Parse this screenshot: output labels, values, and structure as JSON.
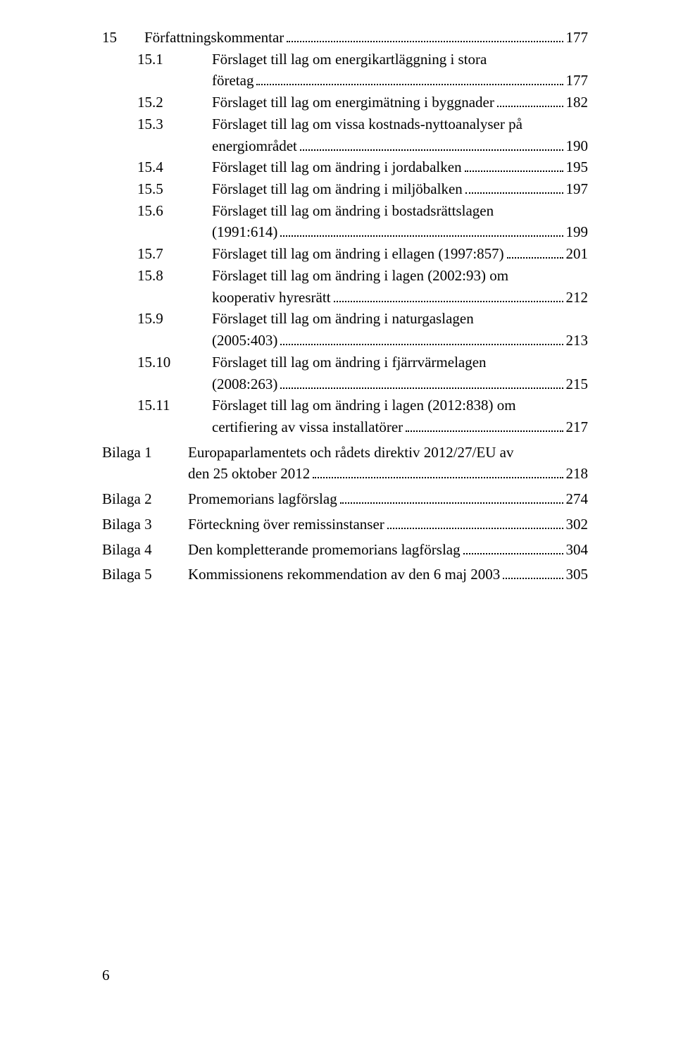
{
  "heading_line": {
    "num": "15",
    "title": "Författningskommentar",
    "page": "177"
  },
  "entries": [
    {
      "num": "15.1",
      "lines": [
        "Förslaget till lag om energikartläggning i stora",
        "företag"
      ],
      "page": "177"
    },
    {
      "num": "15.2",
      "lines": [
        "Förslaget till lag om energimätning i byggnader"
      ],
      "page": "182"
    },
    {
      "num": "15.3",
      "lines": [
        "Förslaget till lag om vissa kostnads-nyttoanalyser på",
        "energiområdet"
      ],
      "page": "190"
    },
    {
      "num": "15.4",
      "lines": [
        "Förslaget till lag om ändring i jordabalken"
      ],
      "page": "195"
    },
    {
      "num": "15.5",
      "lines": [
        "Förslaget till lag om ändring i miljöbalken"
      ],
      "page": "197"
    },
    {
      "num": "15.6",
      "lines": [
        "Förslaget till lag om ändring i bostadsrättslagen",
        "(1991:614)"
      ],
      "page": "199"
    },
    {
      "num": "15.7",
      "lines": [
        "Förslaget till lag om ändring i ellagen (1997:857)"
      ],
      "page": "201"
    },
    {
      "num": "15.8",
      "lines": [
        "Förslaget till lag om ändring i lagen (2002:93) om",
        "kooperativ hyresrätt"
      ],
      "page": "212"
    },
    {
      "num": "15.9",
      "lines": [
        "Förslaget till lag om ändring i naturgaslagen",
        "(2005:403)"
      ],
      "page": "213"
    },
    {
      "num": "15.10",
      "lines": [
        "Förslaget till lag om ändring i fjärrvärmelagen",
        "(2008:263)"
      ],
      "page": "215"
    },
    {
      "num": "15.11",
      "lines": [
        "Förslaget till lag om ändring i lagen (2012:838) om",
        "certifiering av vissa installatörer"
      ],
      "page": "217"
    }
  ],
  "bilaga": [
    {
      "num": "Bilaga 1",
      "lines": [
        "Europaparlamentets och rådets direktiv 2012/27/EU av",
        "den 25 oktober 2012"
      ],
      "page": "218"
    },
    {
      "num": "Bilaga 2",
      "lines": [
        "Promemorians lagförslag"
      ],
      "page": "274"
    },
    {
      "num": "Bilaga 3",
      "lines": [
        "Förteckning över remissinstanser"
      ],
      "page": "302"
    },
    {
      "num": "Bilaga 4",
      "lines": [
        "Den kompletterande promemorians lagförslag"
      ],
      "page": "304"
    },
    {
      "num": "Bilaga 5",
      "lines": [
        "Kommissionens rekommendation av den 6 maj 2003"
      ],
      "page": "305"
    }
  ],
  "footer_page": "6",
  "style": {
    "font_family": "Times New Roman",
    "font_size_pt": 16,
    "text_color": "#000000",
    "background_color": "#ffffff",
    "dot_leader_color": "#000000"
  }
}
